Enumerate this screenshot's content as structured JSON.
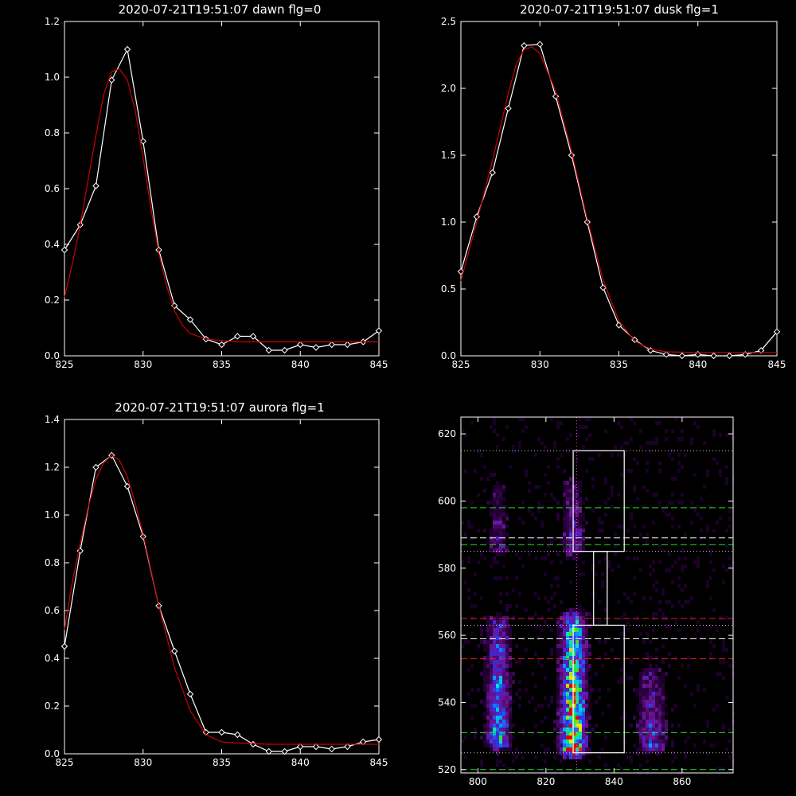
{
  "colors": {
    "background": "#000000",
    "axis": "#ffffff",
    "data_line": "#ffffff",
    "fit_line": "#cc0000",
    "green_dash": "#22dd22",
    "red_dash": "#dd2222",
    "white_dash": "#ffffff",
    "dotted_gray": "#cccccc",
    "magenta_dotted": "#ff44ff"
  },
  "chart_data": [
    {
      "type": "line",
      "title": "2020-07-21T19:51:07 dawn flg=0",
      "xlim": [
        825,
        845
      ],
      "ylim": [
        0,
        1.2
      ],
      "xticks": [
        825,
        830,
        835,
        840,
        845
      ],
      "xtick_labels": [
        "825",
        "830",
        "835",
        "840",
        "845"
      ],
      "yticks": [
        0,
        0.2,
        0.4,
        0.6,
        0.8,
        1.0,
        1.2
      ],
      "ytick_labels": [
        "0.0",
        "0.2",
        "0.4",
        "0.6",
        "0.8",
        "1.0",
        "1.2"
      ],
      "series": [
        {
          "x": [
            825,
            826,
            827,
            828,
            829,
            830,
            831,
            832,
            833,
            834,
            835,
            836,
            837,
            838,
            839,
            840,
            841,
            842,
            843,
            844,
            845
          ],
          "y": [
            0.38,
            0.47,
            0.61,
            0.99,
            1.1,
            0.77,
            0.38,
            0.18,
            0.13,
            0.06,
            0.04,
            0.07,
            0.07,
            0.02,
            0.02,
            0.04,
            0.03,
            0.04,
            0.04,
            0.05,
            0.09
          ],
          "marker": "diamond",
          "color": "#ffffff"
        },
        {
          "x": [
            825,
            825.5,
            826,
            826.5,
            827,
            827.5,
            828,
            828.5,
            829,
            829.5,
            830,
            830.5,
            831,
            831.5,
            832,
            832.5,
            833,
            834,
            835,
            836,
            838,
            840,
            845
          ],
          "y": [
            0.21,
            0.33,
            0.47,
            0.63,
            0.79,
            0.94,
            1.02,
            1.03,
            0.99,
            0.88,
            0.71,
            0.53,
            0.37,
            0.25,
            0.16,
            0.11,
            0.08,
            0.06,
            0.055,
            0.05,
            0.05,
            0.05,
            0.05
          ],
          "color": "#cc0000"
        }
      ]
    },
    {
      "type": "line",
      "title": "2020-07-21T19:51:07 dusk flg=1",
      "xlim": [
        825,
        845
      ],
      "ylim": [
        0,
        2.5
      ],
      "xticks": [
        825,
        830,
        835,
        840,
        845
      ],
      "xtick_labels": [
        "825",
        "830",
        "835",
        "840",
        "845"
      ],
      "yticks": [
        0,
        0.5,
        1.0,
        1.5,
        2.0,
        2.5
      ],
      "ytick_labels": [
        "0.0",
        "0.5",
        "1.0",
        "1.5",
        "2.0",
        "2.5"
      ],
      "series": [
        {
          "x": [
            825,
            826,
            827,
            828,
            829,
            830,
            831,
            832,
            833,
            834,
            835,
            836,
            837,
            838,
            839,
            840,
            841,
            842,
            843,
            844,
            845
          ],
          "y": [
            0.63,
            1.04,
            1.37,
            1.85,
            2.32,
            2.33,
            1.94,
            1.5,
            1.0,
            0.51,
            0.23,
            0.12,
            0.04,
            0.01,
            0.0,
            0.01,
            0.0,
            0.0,
            0.01,
            0.04,
            0.18
          ],
          "marker": "diamond",
          "color": "#ffffff"
        },
        {
          "x": [
            825,
            826,
            827,
            828,
            828.5,
            829,
            829.5,
            830,
            831,
            832,
            833,
            834,
            835,
            836,
            837,
            838,
            840,
            842,
            845
          ],
          "y": [
            0.56,
            1.0,
            1.46,
            1.96,
            2.18,
            2.29,
            2.31,
            2.26,
            1.98,
            1.53,
            1.02,
            0.57,
            0.26,
            0.11,
            0.05,
            0.03,
            0.025,
            0.025,
            0.025
          ],
          "color": "#cc0000"
        }
      ]
    },
    {
      "type": "line",
      "title": "2020-07-21T19:51:07 aurora flg=1",
      "xlim": [
        825,
        845
      ],
      "ylim": [
        0,
        1.4
      ],
      "xticks": [
        825,
        830,
        835,
        840,
        845
      ],
      "xtick_labels": [
        "825",
        "830",
        "835",
        "840",
        "845"
      ],
      "yticks": [
        0,
        0.2,
        0.4,
        0.6,
        0.8,
        1.0,
        1.2,
        1.4
      ],
      "ytick_labels": [
        "0.0",
        "0.2",
        "0.4",
        "0.6",
        "0.8",
        "1.0",
        "1.2",
        "1.4"
      ],
      "series": [
        {
          "x": [
            825,
            826,
            827,
            828,
            829,
            830,
            831,
            832,
            833,
            834,
            835,
            836,
            837,
            838,
            839,
            840,
            841,
            842,
            843,
            844,
            845
          ],
          "y": [
            0.45,
            0.85,
            1.2,
            1.25,
            1.12,
            0.91,
            0.62,
            0.43,
            0.25,
            0.09,
            0.09,
            0.08,
            0.04,
            0.01,
            0.01,
            0.03,
            0.03,
            0.02,
            0.03,
            0.05,
            0.06
          ],
          "marker": "diamond",
          "color": "#ffffff"
        },
        {
          "x": [
            825,
            825.5,
            826,
            826.5,
            827,
            827.5,
            828,
            828.5,
            829,
            829.5,
            830,
            831,
            832,
            833,
            834,
            835,
            836,
            838,
            840,
            842,
            845
          ],
          "y": [
            0.52,
            0.72,
            0.88,
            1.03,
            1.15,
            1.22,
            1.25,
            1.23,
            1.16,
            1.05,
            0.92,
            0.62,
            0.36,
            0.18,
            0.08,
            0.05,
            0.045,
            0.04,
            0.04,
            0.04,
            0.04
          ],
          "color": "#cc0000"
        }
      ]
    },
    {
      "type": "heatmap",
      "title": "",
      "xlim": [
        795,
        875
      ],
      "ylim": [
        519,
        625
      ],
      "xticks": [
        800,
        820,
        840,
        860
      ],
      "xtick_labels": [
        "800",
        "820",
        "840",
        "860"
      ],
      "yticks": [
        520,
        540,
        560,
        580,
        600,
        620
      ],
      "ytick_labels": [
        "520",
        "540",
        "560",
        "580",
        "600",
        "620"
      ],
      "blobs": [
        {
          "cx": 806,
          "y0": 528,
          "y1": 562,
          "peak": 0.55,
          "sigma_x": 2.2
        },
        {
          "cx": 828,
          "y0": 526,
          "y1": 563,
          "peak": 0.95,
          "sigma_x": 2.3
        },
        {
          "cx": 851,
          "y0": 527,
          "y1": 547,
          "peak": 0.35,
          "sigma_x": 2.6
        },
        {
          "cx": 806,
          "y0": 586,
          "y1": 602,
          "peak": 0.2,
          "sigma_x": 2.0
        },
        {
          "cx": 828,
          "y0": 586,
          "y1": 603,
          "peak": 0.3,
          "sigma_x": 2.0
        }
      ],
      "hlines": [
        {
          "y": 615,
          "color": "#cccccc",
          "style": "dotted"
        },
        {
          "y": 598,
          "color": "#22dd22",
          "style": "dashed"
        },
        {
          "y": 589,
          "color": "#ffffff",
          "style": "dashed"
        },
        {
          "y": 587,
          "color": "#22dd22",
          "style": "dashed"
        },
        {
          "y": 585,
          "color": "#cccccc",
          "style": "dotted"
        },
        {
          "y": 565,
          "color": "#dd2222",
          "style": "dashed"
        },
        {
          "y": 563,
          "color": "#cccccc",
          "style": "dotted"
        },
        {
          "y": 559,
          "color": "#ffffff",
          "style": "dashed"
        },
        {
          "y": 553,
          "color": "#dd2222",
          "style": "dashed"
        },
        {
          "y": 531,
          "color": "#22dd22",
          "style": "dashed"
        },
        {
          "y": 525,
          "color": "#cccccc",
          "style": "dotted"
        },
        {
          "y": 520,
          "color": "#22dd22",
          "style": "dashed"
        }
      ],
      "vlines": [
        {
          "x": 829,
          "color": "#ff44ff",
          "style": "dotted"
        }
      ],
      "boxes": [
        {
          "x0": 828,
          "x1": 843,
          "y0": 585,
          "y1": 615
        },
        {
          "x0": 834,
          "x1": 838,
          "y0": 563,
          "y1": 585
        },
        {
          "x0": 828,
          "x1": 843,
          "y0": 525,
          "y1": 563
        }
      ]
    }
  ]
}
